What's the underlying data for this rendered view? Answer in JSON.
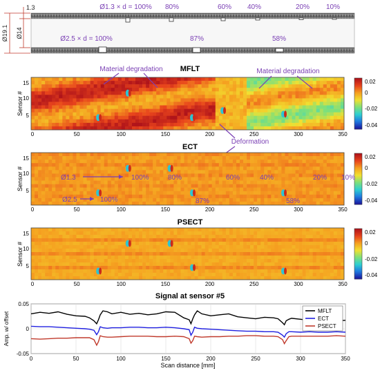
{
  "colors": {
    "annotation": "#7a3fb4",
    "mflt_line": "#000000",
    "ect_line": "#1f1fe0",
    "psect_line": "#c0392b",
    "colormap": [
      "#1a1aa0",
      "#1f7be0",
      "#2fd0d0",
      "#7fe07a",
      "#f2e030",
      "#f5a020",
      "#e8441c",
      "#b0141a"
    ]
  },
  "diagram": {
    "dim_outer": "Ø19.1",
    "dim_inner": "Ø14",
    "dim_wall": "1.3",
    "top_defect_label": "Ø1.3 × d = 100%",
    "top_depths": [
      "80%",
      "60%",
      "40%",
      "20%",
      "10%"
    ],
    "bottom_defect_label": "Ø2.5 × d = 100%",
    "bottom_depths": [
      "87%",
      "58%"
    ]
  },
  "maps": [
    {
      "title": "MFLT",
      "ylabel": "Sensor #",
      "yticks": [
        "15",
        "10",
        "5"
      ],
      "xticks": [
        "0",
        "50",
        "100",
        "150",
        "200",
        "250",
        "300",
        "350"
      ],
      "colorbar_ticks": [
        "0.02",
        "0",
        "-0.02",
        "-0.04"
      ],
      "annotations": [
        "Material degradation",
        "Material degradation",
        "Deformation"
      ]
    },
    {
      "title": "ECT",
      "ylabel": "Sensor #",
      "yticks": [
        "15",
        "10",
        "5"
      ],
      "xticks": [
        "0",
        "50",
        "100",
        "150",
        "200",
        "250",
        "300",
        "350"
      ],
      "colorbar_ticks": [
        "0.02",
        "0",
        "-0.02",
        "-0.04"
      ],
      "labels_row1": [
        "Ø1.3",
        "100%",
        "80%",
        "60%",
        "40%",
        "20%",
        "10%"
      ],
      "labels_row2": [
        "Ø2.5",
        "100%",
        "87%",
        "58%"
      ]
    },
    {
      "title": "PSECT",
      "ylabel": "Sensor #",
      "yticks": [
        "15",
        "10",
        "5"
      ],
      "xticks": [
        "0",
        "50",
        "100",
        "150",
        "200",
        "250",
        "300",
        "350"
      ],
      "colorbar_ticks": [
        "0.02",
        "0",
        "-0.02",
        "-0.04"
      ]
    }
  ],
  "chart_data": {
    "type": "line",
    "title": "Signal at sensor #5",
    "xlabel": "Scan distance [mm]",
    "ylabel": "Amp. w/ offset",
    "xlim": [
      0,
      350
    ],
    "ylim": [
      -0.05,
      0.05
    ],
    "xticks": [
      "0",
      "50",
      "100",
      "150",
      "200",
      "250",
      "300",
      "350"
    ],
    "yticks": [
      "0.05",
      "0",
      "-0.05"
    ],
    "legend_position": "top-right",
    "x": [
      0,
      10,
      20,
      30,
      40,
      50,
      60,
      65,
      70,
      73,
      75,
      77,
      80,
      85,
      90,
      100,
      110,
      120,
      130,
      140,
      150,
      160,
      170,
      176,
      178,
      180,
      182,
      185,
      190,
      200,
      210,
      220,
      230,
      240,
      250,
      260,
      270,
      275,
      280,
      282,
      284,
      287,
      290,
      300,
      310,
      320,
      330,
      340,
      350
    ],
    "series": [
      {
        "name": "MFLT",
        "values": [
          0.03,
          0.033,
          0.031,
          0.034,
          0.029,
          0.026,
          0.025,
          0.022,
          0.016,
          0.01,
          0.018,
          0.028,
          0.036,
          0.034,
          0.03,
          0.033,
          0.029,
          0.031,
          0.028,
          0.03,
          0.034,
          0.033,
          0.022,
          0.018,
          0.01,
          0.02,
          0.028,
          0.036,
          0.03,
          0.026,
          0.028,
          0.03,
          0.024,
          0.022,
          0.02,
          0.023,
          0.022,
          0.02,
          0.012,
          0.008,
          0.016,
          0.019,
          0.021,
          0.019,
          0.017,
          0.018,
          0.019,
          0.016,
          0.017
        ]
      },
      {
        "name": "ECT",
        "values": [
          0.005,
          0.004,
          0.004,
          0.003,
          0.002,
          0.001,
          0.0,
          -0.001,
          -0.003,
          -0.012,
          -0.006,
          0.004,
          0.002,
          0.001,
          0.002,
          0.002,
          0.003,
          0.003,
          0.002,
          0.002,
          0.003,
          0.002,
          0.0,
          -0.002,
          -0.013,
          -0.007,
          0.003,
          0.001,
          0.0,
          -0.001,
          -0.002,
          -0.003,
          -0.004,
          -0.005,
          -0.005,
          -0.006,
          -0.006,
          -0.007,
          -0.013,
          -0.017,
          -0.01,
          -0.006,
          -0.006,
          -0.007,
          -0.006,
          -0.007,
          -0.007,
          -0.006,
          -0.007
        ]
      },
      {
        "name": "PSECT",
        "values": [
          -0.02,
          -0.021,
          -0.02,
          -0.019,
          -0.019,
          -0.018,
          -0.018,
          -0.018,
          -0.022,
          -0.033,
          -0.026,
          -0.014,
          -0.016,
          -0.017,
          -0.017,
          -0.016,
          -0.015,
          -0.015,
          -0.015,
          -0.016,
          -0.016,
          -0.015,
          -0.016,
          -0.02,
          -0.029,
          -0.024,
          -0.015,
          -0.016,
          -0.017,
          -0.016,
          -0.016,
          -0.015,
          -0.015,
          -0.014,
          -0.014,
          -0.015,
          -0.015,
          -0.016,
          -0.022,
          -0.03,
          -0.024,
          -0.016,
          -0.015,
          -0.015,
          -0.015,
          -0.015,
          -0.015,
          -0.014,
          -0.015
        ]
      }
    ]
  }
}
